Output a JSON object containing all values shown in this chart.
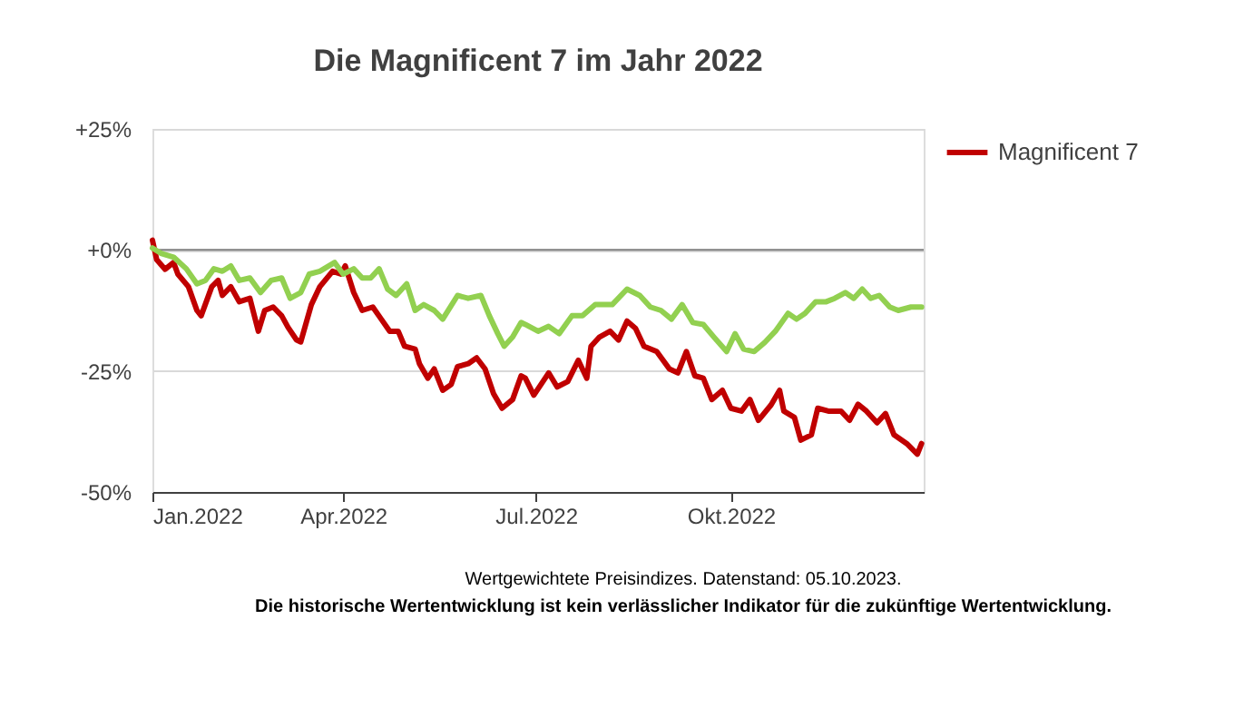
{
  "chart_data": {
    "type": "line",
    "title": "Die Magnificent 7 im Jahr 2022",
    "annotations": [
      "Wertgewichtete Preisindizes. Datenstand: 05.10.2023.",
      "Die historische Wertentwicklung ist kein verlässlicher Indikator für die zukünftige Wertentwicklung."
    ],
    "xlim": [
      "2022-01-01",
      "2022-12-31"
    ],
    "xticks": [
      {
        "value": "2022-01-01",
        "label": "Jan.2022"
      },
      {
        "value": "2022-04-01",
        "label": "Apr.2022"
      },
      {
        "value": "2022-07-01",
        "label": "Jul.2022"
      },
      {
        "value": "2022-10-01",
        "label": "Okt.2022"
      }
    ],
    "ylim": [
      -50,
      25
    ],
    "yticks": [
      {
        "value": 25,
        "label": "+25%"
      },
      {
        "value": 0,
        "label": "+0%"
      },
      {
        "value": -25,
        "label": "-25%"
      },
      {
        "value": -50,
        "label": "-50%"
      }
    ],
    "grid": "y",
    "legend": "right",
    "line_style": "solid",
    "marker": "none",
    "ref_lines": [
      {
        "axis": "y",
        "value": 0,
        "color": "#7f7f7f"
      }
    ],
    "series": [
      {
        "name": "Magnificent 7",
        "color": "#c00000",
        "x": [
          "2022-01-01",
          "2022-01-03",
          "2022-01-07",
          "2022-01-11",
          "2022-01-13",
          "2022-01-18",
          "2022-01-22",
          "2022-01-24",
          "2022-01-29",
          "2022-02-01",
          "2022-02-03",
          "2022-02-07",
          "2022-02-11",
          "2022-02-16",
          "2022-02-20",
          "2022-02-23",
          "2022-02-27",
          "2022-03-03",
          "2022-03-06",
          "2022-03-10",
          "2022-03-12",
          "2022-03-17",
          "2022-03-21",
          "2022-03-27",
          "2022-03-31",
          "2022-04-02",
          "2022-04-06",
          "2022-04-10",
          "2022-04-15",
          "2022-04-19",
          "2022-04-23",
          "2022-04-27",
          "2022-04-30",
          "2022-05-05",
          "2022-05-07",
          "2022-05-11",
          "2022-05-14",
          "2022-05-18",
          "2022-05-22",
          "2022-05-25",
          "2022-05-30",
          "2022-06-03",
          "2022-06-07",
          "2022-06-11",
          "2022-06-15",
          "2022-06-20",
          "2022-06-24",
          "2022-06-26",
          "2022-06-30",
          "2022-07-07",
          "2022-07-11",
          "2022-07-16",
          "2022-07-21",
          "2022-07-25",
          "2022-07-27",
          "2022-07-31",
          "2022-08-05",
          "2022-08-09",
          "2022-08-13",
          "2022-08-17",
          "2022-08-21",
          "2022-08-27",
          "2022-09-02",
          "2022-09-06",
          "2022-09-10",
          "2022-09-14",
          "2022-09-18",
          "2022-09-22",
          "2022-09-27",
          "2022-10-01",
          "2022-10-06",
          "2022-10-10",
          "2022-10-14",
          "2022-10-20",
          "2022-10-24",
          "2022-10-26",
          "2022-10-31",
          "2022-11-03",
          "2022-11-08",
          "2022-11-11",
          "2022-11-16",
          "2022-11-22",
          "2022-11-26",
          "2022-11-30",
          "2022-12-04",
          "2022-12-09",
          "2022-12-13",
          "2022-12-17",
          "2022-12-23",
          "2022-12-28",
          "2022-12-30"
        ],
        "values": [
          2,
          -2,
          -4,
          -2.6,
          -5,
          -7.6,
          -12.5,
          -13.6,
          -7.6,
          -6.3,
          -9.4,
          -7.6,
          -10.7,
          -10,
          -16.8,
          -12.5,
          -11.8,
          -13.6,
          -16,
          -18.6,
          -19,
          -11.3,
          -7.6,
          -4.4,
          -5,
          -3.3,
          -8.8,
          -12.5,
          -11.8,
          -14.3,
          -16.8,
          -16.8,
          -19.9,
          -20.5,
          -23.5,
          -26.5,
          -24.6,
          -29,
          -27.8,
          -24.1,
          -23.5,
          -22.3,
          -24.6,
          -29.7,
          -32.7,
          -30.9,
          -26,
          -26.5,
          -30,
          -25.4,
          -28.3,
          -27.2,
          -22.8,
          -26.5,
          -19.9,
          -18,
          -16.8,
          -18.6,
          -14.7,
          -16.2,
          -19.9,
          -21,
          -24.6,
          -25.4,
          -21,
          -26,
          -26.5,
          -30.9,
          -29,
          -32.7,
          -33.3,
          -30.9,
          -35.2,
          -32,
          -29,
          -33.3,
          -34.6,
          -39.3,
          -38.2,
          -32.7,
          -33.3,
          -33.3,
          -35.2,
          -31.9,
          -33.3,
          -35.7,
          -33.8,
          -38.2,
          -40,
          -42.2,
          -40
        ]
      },
      {
        "color": "#92d050",
        "x": [
          "2022-01-01",
          "2022-01-05",
          "2022-01-11",
          "2022-01-17",
          "2022-01-22",
          "2022-01-26",
          "2022-01-30",
          "2022-02-03",
          "2022-02-07",
          "2022-02-11",
          "2022-02-16",
          "2022-02-21",
          "2022-02-26",
          "2022-03-03",
          "2022-03-07",
          "2022-03-12",
          "2022-03-16",
          "2022-03-21",
          "2022-03-28",
          "2022-04-01",
          "2022-04-06",
          "2022-04-10",
          "2022-04-14",
          "2022-04-18",
          "2022-04-22",
          "2022-04-26",
          "2022-05-01",
          "2022-05-05",
          "2022-05-09",
          "2022-05-14",
          "2022-05-18",
          "2022-05-25",
          "2022-05-30",
          "2022-06-05",
          "2022-06-09",
          "2022-06-13",
          "2022-06-16",
          "2022-06-20",
          "2022-06-24",
          "2022-06-26",
          "2022-07-02",
          "2022-07-07",
          "2022-07-12",
          "2022-07-18",
          "2022-07-23",
          "2022-07-29",
          "2022-08-06",
          "2022-08-13",
          "2022-08-19",
          "2022-08-24",
          "2022-08-29",
          "2022-09-03",
          "2022-09-08",
          "2022-09-13",
          "2022-09-18",
          "2022-09-23",
          "2022-09-29",
          "2022-10-03",
          "2022-10-07",
          "2022-10-12",
          "2022-10-17",
          "2022-10-22",
          "2022-10-28",
          "2022-11-01",
          "2022-11-05",
          "2022-11-10",
          "2022-11-15",
          "2022-11-19",
          "2022-11-24",
          "2022-11-28",
          "2022-12-02",
          "2022-12-06",
          "2022-12-10",
          "2022-12-15",
          "2022-12-19",
          "2022-12-25",
          "2022-12-30"
        ],
        "values": [
          0.4,
          -0.7,
          -1.5,
          -3.9,
          -7,
          -6.3,
          -3.9,
          -4.4,
          -3.3,
          -6.3,
          -5.8,
          -8.8,
          -6.3,
          -5.8,
          -10,
          -8.8,
          -5,
          -4.4,
          -2.6,
          -5,
          -3.9,
          -5.8,
          -5.8,
          -3.9,
          -8.1,
          -9.4,
          -7,
          -12.5,
          -11.3,
          -12.5,
          -14.3,
          -9.4,
          -10,
          -9.4,
          -13.6,
          -17.3,
          -19.9,
          -18,
          -15,
          -15.4,
          -16.8,
          -15.8,
          -17.3,
          -13.6,
          -13.6,
          -11.3,
          -11.3,
          -8.1,
          -9.4,
          -11.8,
          -12.5,
          -14.3,
          -11.3,
          -15,
          -15.4,
          -18,
          -21,
          -17.3,
          -20.5,
          -21,
          -19.1,
          -16.8,
          -13.1,
          -14.3,
          -13.1,
          -10.7,
          -10.7,
          -10,
          -8.8,
          -10,
          -8.1,
          -10,
          -9.4,
          -11.8,
          -12.5,
          -11.8,
          -11.8
        ]
      }
    ]
  }
}
